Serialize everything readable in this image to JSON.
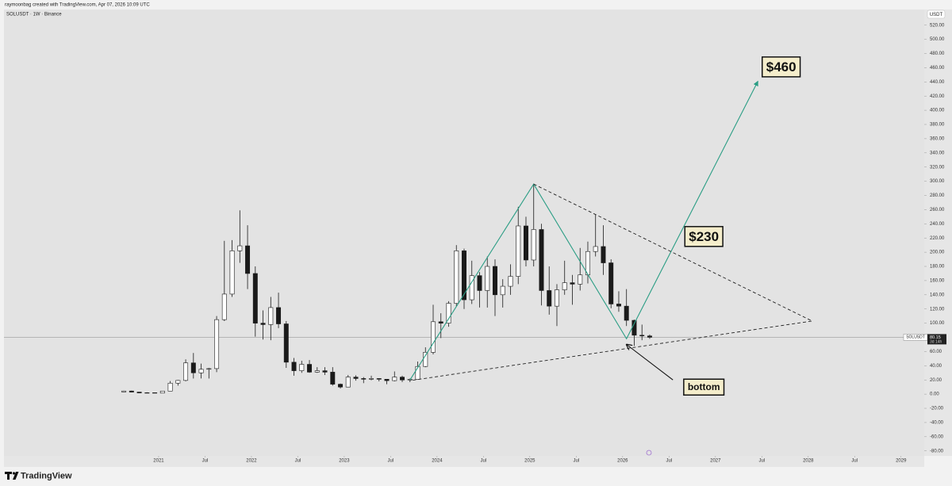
{
  "header": {
    "credit": "raymoonbag created with TradingView.com, Apr 07, 2026 10:09 UTC",
    "symbol": "SOLUSDT · 1W · Binance",
    "currency": "USDT",
    "brand": "TradingView"
  },
  "chart_data": {
    "type": "candlestick",
    "x": [
      "2020-08",
      "2020-09",
      "2020-10",
      "2020-11",
      "2020-12",
      "2021-01",
      "2021-02",
      "2021-03",
      "2021-04",
      "2021-05",
      "2021-06",
      "2021-07",
      "2021-08",
      "2021-09",
      "2021-10",
      "2021-11",
      "2021-12",
      "2022-01",
      "2022-02",
      "2022-03",
      "2022-04",
      "2022-05",
      "2022-06",
      "2022-07",
      "2022-08",
      "2022-09",
      "2022-10",
      "2022-11",
      "2022-12",
      "2023-01",
      "2023-02",
      "2023-03",
      "2023-04",
      "2023-05",
      "2023-06",
      "2023-07",
      "2023-08",
      "2023-09",
      "2023-10",
      "2023-11",
      "2023-12",
      "2024-01",
      "2024-02",
      "2024-03",
      "2024-04",
      "2024-05",
      "2024-06",
      "2024-07",
      "2024-08",
      "2024-09",
      "2024-10",
      "2024-11",
      "2024-12",
      "2025-01",
      "2025-02",
      "2025-03",
      "2025-04",
      "2025-05",
      "2025-06",
      "2025-07",
      "2025-08",
      "2025-09",
      "2025-10",
      "2025-11",
      "2025-12",
      "2026-01",
      "2026-02",
      "2026-03",
      "2026-04"
    ],
    "open": [
      3,
      4.4,
      2.9,
      1.7,
      2,
      1.5,
      4.3,
      15.5,
      19.3,
      44,
      30,
      35,
      36,
      105,
      141,
      202,
      209,
      170,
      100,
      98,
      122,
      99,
      45,
      33,
      42,
      31,
      33,
      31,
      14,
      10,
      24,
      22,
      21,
      22,
      21,
      19,
      24,
      20,
      21,
      39,
      59,
      102,
      100,
      128,
      202,
      133,
      167,
      146,
      180,
      140,
      152,
      166,
      237,
      189,
      232,
      146,
      124,
      147,
      157,
      155,
      168,
      201,
      208,
      185,
      127,
      124,
      104,
      83,
      82
    ],
    "high": [
      4.9,
      4.9,
      2.9,
      2.6,
      2.3,
      4.6,
      18.5,
      20,
      49,
      58,
      43,
      37,
      110,
      216,
      217,
      259,
      238,
      180,
      118,
      137,
      143,
      103,
      51,
      47,
      48,
      38,
      38,
      38,
      15,
      27,
      26.5,
      24,
      26,
      22.5,
      21,
      32,
      26,
      22,
      46,
      66,
      126,
      114,
      131,
      210,
      205,
      188,
      172,
      194,
      190,
      162,
      183,
      264,
      250,
      295,
      240,
      180,
      155,
      188,
      168,
      206,
      215,
      253,
      238,
      190,
      145,
      148,
      105,
      98,
      84
    ],
    "low": [
      2.6,
      2.6,
      1.5,
      1.5,
      1.3,
      1.5,
      4,
      12,
      18,
      22,
      22,
      22,
      31,
      103,
      137,
      185,
      148,
      81,
      77,
      76,
      93,
      37,
      26,
      30,
      30,
      30,
      27,
      12,
      8,
      9.6,
      19,
      15.5,
      19.5,
      18,
      14,
      18,
      17,
      17,
      21,
      38,
      56,
      79,
      95,
      124,
      120,
      127,
      122,
      122,
      110,
      122,
      140,
      155,
      180,
      180,
      125,
      112,
      96,
      140,
      126,
      146,
      156,
      194,
      168,
      121,
      116,
      96,
      68,
      76,
      78
    ],
    "close": [
      4.4,
      2.9,
      1.7,
      2,
      1.5,
      4.3,
      15.5,
      19.3,
      44,
      30,
      35,
      36,
      105,
      141,
      202,
      209,
      170,
      100,
      98,
      122,
      99,
      45,
      33,
      42,
      31,
      33,
      31,
      14,
      10,
      24,
      22,
      21,
      22,
      21,
      19,
      24,
      20,
      21,
      39,
      59,
      102,
      100,
      128,
      202,
      133,
      167,
      146,
      180,
      140,
      152,
      166,
      237,
      189,
      232,
      146,
      124,
      147,
      157,
      155,
      168,
      201,
      208,
      185,
      127,
      124,
      104,
      83,
      82,
      80.15
    ],
    "xlim": [
      "2019-05",
      "2029-04"
    ],
    "xticks": [
      {
        "value": "2021-01",
        "label": "2021"
      },
      {
        "value": "2021-07",
        "label": "Jul"
      },
      {
        "value": "2022-01",
        "label": "2022"
      },
      {
        "value": "2022-07",
        "label": "Jul"
      },
      {
        "value": "2023-01",
        "label": "2023"
      },
      {
        "value": "2023-07",
        "label": "Jul"
      },
      {
        "value": "2024-01",
        "label": "2024"
      },
      {
        "value": "2024-07",
        "label": "Jul"
      },
      {
        "value": "2025-01",
        "label": "2025"
      },
      {
        "value": "2025-07",
        "label": "Jul"
      },
      {
        "value": "2026-01",
        "label": "2026"
      },
      {
        "value": "2026-07",
        "label": "Jul"
      },
      {
        "value": "2027-01",
        "label": "2027"
      },
      {
        "value": "2027-07",
        "label": "Jul"
      },
      {
        "value": "2028-01",
        "label": "2028"
      },
      {
        "value": "2028-07",
        "label": "Jul"
      },
      {
        "value": "2029-01",
        "label": "2029"
      }
    ],
    "ylim": [
      -87,
      542
    ],
    "yticks": [
      {
        "value": 520,
        "label": "520.00"
      },
      {
        "value": 500,
        "label": "500.00"
      },
      {
        "value": 480,
        "label": "480.00"
      },
      {
        "value": 460,
        "label": "460.00"
      },
      {
        "value": 440,
        "label": "440.00"
      },
      {
        "value": 420,
        "label": "420.00"
      },
      {
        "value": 400,
        "label": "400.00"
      },
      {
        "value": 380,
        "label": "380.00"
      },
      {
        "value": 360,
        "label": "360.00"
      },
      {
        "value": 340,
        "label": "340.00"
      },
      {
        "value": 320,
        "label": "320.00"
      },
      {
        "value": 300,
        "label": "300.00"
      },
      {
        "value": 280,
        "label": "280.00"
      },
      {
        "value": 260,
        "label": "260.00"
      },
      {
        "value": 240,
        "label": "240.00"
      },
      {
        "value": 220,
        "label": "220.00"
      },
      {
        "value": 200,
        "label": "200.00"
      },
      {
        "value": 180,
        "label": "180.00"
      },
      {
        "value": 160,
        "label": "160.00"
      },
      {
        "value": 140,
        "label": "140.00"
      },
      {
        "value": 120,
        "label": "120.00"
      },
      {
        "value": 100,
        "label": "100.00"
      },
      {
        "value": 80,
        "label": "80.00"
      },
      {
        "value": 60,
        "label": "60.00"
      },
      {
        "value": 40,
        "label": "40.00"
      },
      {
        "value": 20,
        "label": "20.00"
      },
      {
        "value": 0,
        "label": "0.00"
      },
      {
        "value": -20,
        "label": "-20.00"
      },
      {
        "value": -40,
        "label": "-40.00"
      },
      {
        "value": -60,
        "label": "-60.00"
      },
      {
        "value": -80,
        "label": "-80.00"
      }
    ],
    "grid": false,
    "up_color": "#ffffff",
    "down_color": "#1a1a1a",
    "price_tag": {
      "symbol": "SOLUSDT",
      "price": 80.15,
      "countdown": "3d 14h"
    },
    "lines": [
      {
        "style": "solid",
        "color": "#2a9d84",
        "arrow": true,
        "x": [
          "2023-09",
          "2025-01",
          "2026-01",
          "2027-06"
        ],
        "y": [
          20,
          296,
          78,
          441
        ]
      },
      {
        "style": "dashed",
        "color": "#222222",
        "arrow": false,
        "x": [
          "2025-01",
          "2028-01",
          "2023-09"
        ],
        "y": [
          296,
          103,
          19
        ]
      },
      {
        "style": "solid",
        "color": "#111111",
        "arrow": true,
        "x": [
          "2026-07",
          "2026-01"
        ],
        "y": [
          20,
          70
        ]
      }
    ],
    "labels": [
      {
        "text": "$460",
        "x": "2027-09",
        "y": 460,
        "size": 17
      },
      {
        "text": "$230",
        "x": "2026-11",
        "y": 221,
        "size": 17
      },
      {
        "text": "bottom",
        "x": "2026-11",
        "y": 9,
        "size": 12
      }
    ]
  }
}
